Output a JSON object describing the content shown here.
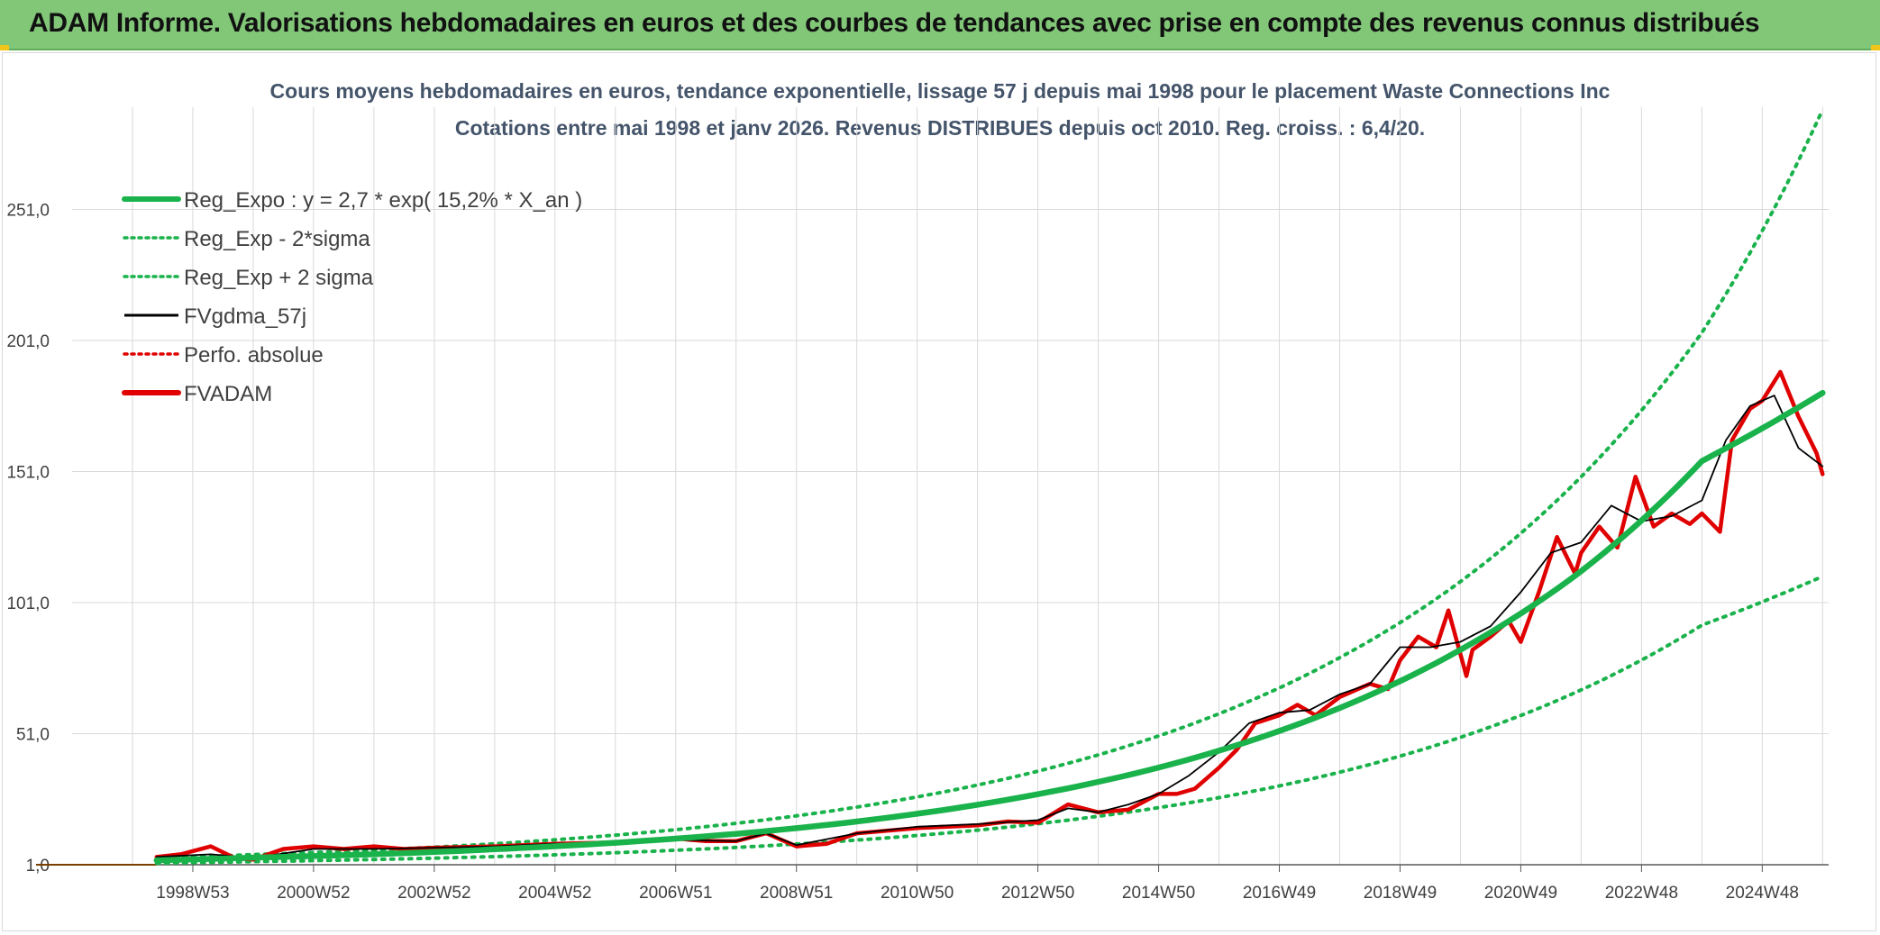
{
  "banner": {
    "title": "ADAM Informe. Valorisations hebdomadaires en euros et des courbes de tendances avec prise en compte des revenus connus distribués",
    "color": "#82c678"
  },
  "chart_data": {
    "type": "line",
    "title_line1": "Cours moyens hebdomadaires en euros, tendance exponentielle, lissage 57 j depuis mai 1998 pour le placement Waste Connections Inc",
    "title_line2": "Cotations entre mai 1998 et janv 2026. Revenus DISTRIBUES depuis oct 2010. Reg. croiss. : 6,4/20.",
    "y_ticks": [
      "1,0",
      "51,0",
      "101,0",
      "151,0",
      "201,0",
      "251,0"
    ],
    "ylim": [
      1,
      290
    ],
    "x_ticks": [
      "1998W53",
      "2000W52",
      "2002W52",
      "2004W52",
      "2006W51",
      "2008W51",
      "2010W50",
      "2012W50",
      "2014W50",
      "2016W49",
      "2018W49",
      "2020W49",
      "2022W48",
      "2024W48"
    ],
    "xlim": [
      "1997",
      "2026.1"
    ],
    "grid": true,
    "legend_position": "top-left",
    "legend": [
      {
        "label": "Reg_Expo : y = 2,7 * exp( 15,2% *  X_an )",
        "color": "#19b24b",
        "style": "solid-thick"
      },
      {
        "label": "Reg_Exp - 2*sigma",
        "color": "#19b24b",
        "style": "dotted"
      },
      {
        "label": "Reg_Exp + 2 sigma",
        "color": "#19b24b",
        "style": "dotted"
      },
      {
        "label": "FVgdma_57j",
        "color": "#000000",
        "style": "solid"
      },
      {
        "label": "Perfo. absolue",
        "color": "#e00000",
        "style": "dotted"
      },
      {
        "label": "FVADAM",
        "color": "#e00000",
        "style": "solid-thick"
      }
    ],
    "series": [
      {
        "name": "Reg_Expo : y = 2,7 * exp( 15,2% *  X_an )",
        "x": [
          1998.4,
          2000,
          2002,
          2004,
          2006,
          2008,
          2010,
          2012,
          2014,
          2016,
          2018,
          2020,
          2022,
          2024,
          2026
        ],
        "values": [
          2.7,
          3.7,
          5.0,
          6.9,
          9.4,
          12.8,
          17.5,
          23.9,
          32.6,
          44.5,
          60.8,
          83,
          113,
          155,
          181
        ]
      },
      {
        "name": "Reg_Exp - 2*sigma",
        "x": [
          1998.4,
          2000,
          2002,
          2004,
          2006,
          2008,
          2010,
          2012,
          2014,
          2016,
          2018,
          2020,
          2022,
          2024,
          2026
        ],
        "values": [
          1.6,
          2.2,
          3.0,
          4.1,
          5.6,
          7.6,
          10.4,
          14.2,
          19.5,
          26.6,
          36.3,
          49.6,
          67.7,
          92.4,
          111
        ]
      },
      {
        "name": "Reg_Exp + 2 sigma",
        "x": [
          1998.4,
          2000,
          2002,
          2004,
          2006,
          2008,
          2010,
          2012,
          2014,
          2016,
          2018,
          2020,
          2022,
          2024,
          2026
        ],
        "values": [
          3.5,
          4.9,
          6.6,
          9.0,
          12.3,
          16.8,
          23.0,
          31.4,
          42.9,
          58.6,
          80,
          109,
          149,
          204,
          289
        ]
      },
      {
        "name": "FVgdma_57j",
        "x": [
          1998.4,
          1999.3,
          2000,
          2001,
          2002,
          2003,
          2004,
          2005,
          2006,
          2007,
          2008,
          2008.5,
          2009,
          2010,
          2011,
          2012,
          2013,
          2013.5,
          2014,
          2014.5,
          2015,
          2015.5,
          2016,
          2016.5,
          2017,
          2017.5,
          2018,
          2018.5,
          2019,
          2019.5,
          2020,
          2020.5,
          2021,
          2021.5,
          2022,
          2022.5,
          2023,
          2023.5,
          2024,
          2024.4,
          2024.8,
          2025.2,
          2025.6,
          2026
        ],
        "values": [
          4.0,
          5.0,
          3.5,
          7.0,
          7.0,
          7.5,
          8.0,
          9.0,
          9.5,
          10.5,
          10.0,
          13.0,
          8.5,
          13.0,
          15.5,
          16.5,
          18.0,
          22.5,
          21.0,
          24.0,
          28.0,
          35.0,
          44.0,
          55.0,
          59.0,
          60.0,
          66.0,
          70.0,
          84.0,
          84.0,
          86.0,
          92.0,
          105.0,
          120.0,
          124.0,
          138.0,
          132.0,
          134.0,
          140.0,
          163.0,
          176.0,
          180.0,
          160.0,
          153.0
        ]
      },
      {
        "name": "FVADAM",
        "x": [
          1998.4,
          1998.8,
          1999.3,
          1999.7,
          2000,
          2000.5,
          2001,
          2001.5,
          2002,
          2002.5,
          2003,
          2004,
          2005,
          2006,
          2007,
          2007.5,
          2008,
          2008.5,
          2009,
          2009.5,
          2010,
          2011,
          2012,
          2012.5,
          2013,
          2013.5,
          2014,
          2014.5,
          2015,
          2015.3,
          2015.6,
          2016,
          2016.3,
          2016.6,
          2017,
          2017.3,
          2017.6,
          2018,
          2018.5,
          2018.8,
          2019,
          2019.3,
          2019.6,
          2019.8,
          2020.1,
          2020.2,
          2020.5,
          2020.8,
          2021,
          2021.3,
          2021.6,
          2021.9,
          2022,
          2022.3,
          2022.6,
          2022.9,
          2023.2,
          2023.5,
          2023.8,
          2024,
          2024.3,
          2024.5,
          2024.8,
          2025,
          2025.3,
          2025.6,
          2025.9,
          2026
        ],
        "values": [
          4.0,
          5.0,
          8.0,
          3.5,
          3.0,
          7.0,
          8.0,
          7.0,
          8.0,
          7.0,
          7.5,
          8.0,
          9.0,
          9.5,
          11.0,
          10.0,
          10.0,
          13.0,
          8.0,
          9.0,
          13.0,
          15.0,
          16.0,
          17.5,
          17.0,
          24.0,
          21.0,
          22.0,
          28.0,
          28.0,
          30.0,
          38.0,
          45.0,
          55.0,
          58.0,
          62.0,
          58.0,
          65.0,
          70.0,
          68.0,
          79.0,
          88.0,
          84.0,
          98.0,
          73.0,
          83.0,
          88.0,
          94.0,
          86.0,
          105.0,
          126.0,
          112.0,
          120.0,
          130.0,
          122.0,
          149.0,
          130.0,
          135.0,
          131.0,
          135.0,
          128.0,
          163.0,
          175.0,
          178.0,
          189.0,
          172.0,
          158.0,
          150.0
        ]
      }
    ]
  }
}
